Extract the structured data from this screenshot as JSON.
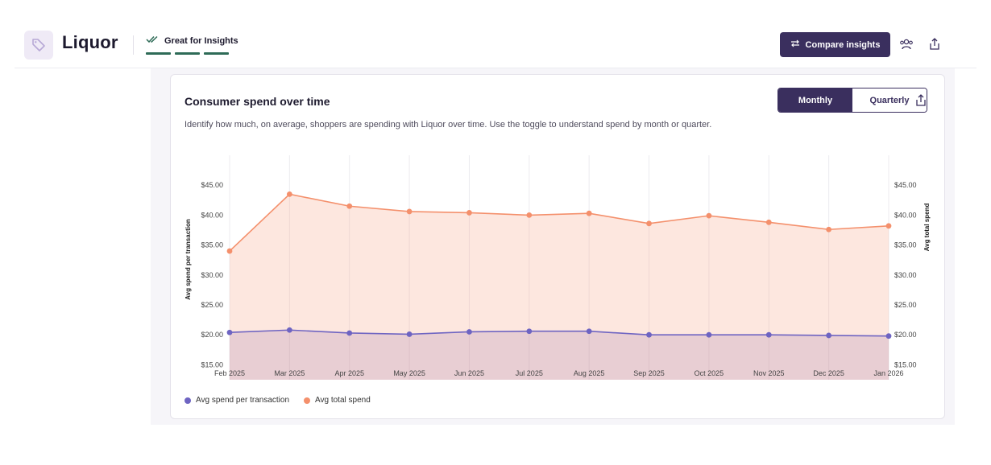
{
  "header": {
    "title": "Liquor",
    "badge_label": "Great for Insights",
    "compare_label": "Compare insights"
  },
  "card": {
    "title": "Consumer spend over time",
    "description": "Identify how much, on average, shoppers are spending with Liquor over time. Use the toggle to understand spend by month or quarter.",
    "toggle": {
      "monthly": "Monthly",
      "quarterly": "Quarterly",
      "active": "monthly"
    }
  },
  "colors": {
    "accent": "#3a2f5e",
    "badge_green": "#2e6b57",
    "series_transaction": "#6e64c2",
    "series_total": "#f4906c"
  },
  "chart_data": {
    "type": "area",
    "x": [
      "Feb 2025",
      "Mar 2025",
      "Apr 2025",
      "May 2025",
      "Jun 2025",
      "Jul 2025",
      "Aug 2025",
      "Sep 2025",
      "Oct 2025",
      "Nov 2025",
      "Dec 2025",
      "Jan 2026"
    ],
    "series": [
      {
        "name": "Avg spend per transaction",
        "values": [
          20.4,
          20.8,
          20.3,
          20.1,
          20.5,
          20.6,
          20.6,
          20.0,
          20.0,
          20.0,
          19.9,
          19.8
        ]
      },
      {
        "name": "Avg total spend",
        "values": [
          34.0,
          43.5,
          41.5,
          40.6,
          40.4,
          40.0,
          40.3,
          38.6,
          39.9,
          38.8,
          37.6,
          38.2
        ]
      }
    ],
    "ylabel": "Avg spend per transaction",
    "y2label": "Avg total spend",
    "ylim": [
      12.5,
      50
    ],
    "yticks": [
      "$15.00",
      "$20.00",
      "$25.00",
      "$30.00",
      "$35.00",
      "$40.00",
      "$45.00"
    ],
    "ytick_values": [
      15,
      20,
      25,
      30,
      35,
      40,
      45
    ],
    "grid": "vertical",
    "legend": "bottom-left"
  }
}
